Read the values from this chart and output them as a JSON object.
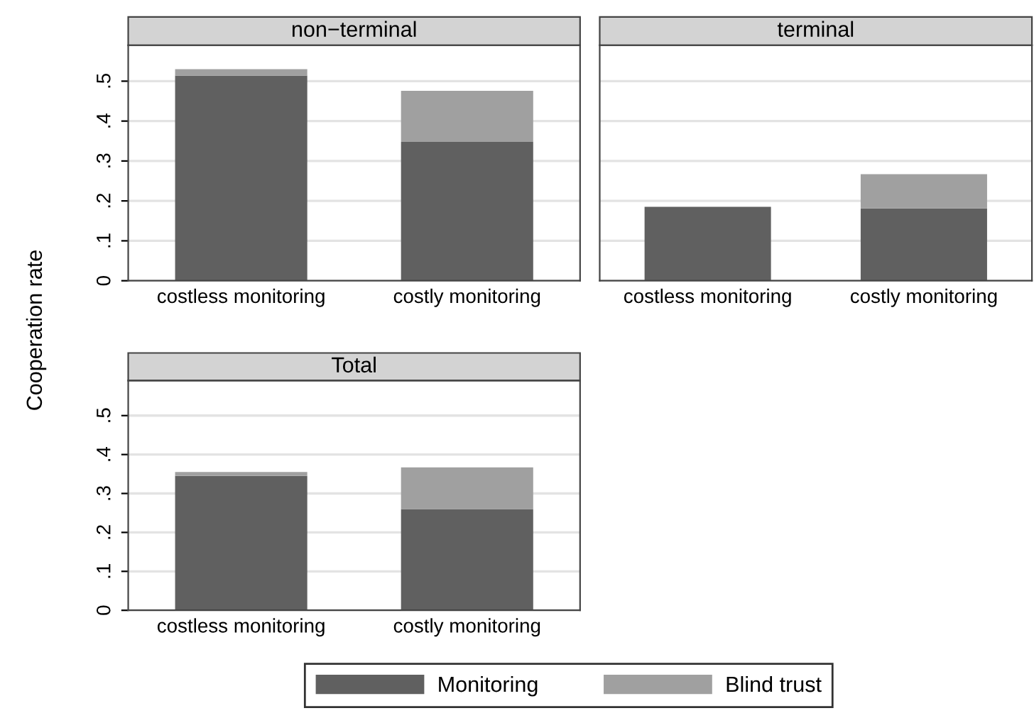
{
  "chart_data": [
    {
      "type": "bar",
      "stacked": true,
      "title": "non−terminal",
      "ylabel": "Cooperation rate",
      "categories": [
        "costless monitoring",
        "costly monitoring"
      ],
      "series": [
        {
          "color": "#606060",
          "values": [
            0.514,
            0.348
          ]
        },
        {
          "color": "#a0a0a0",
          "values": [
            0.016,
            0.128
          ]
        }
      ],
      "ylim": [
        0,
        0.59
      ],
      "yticks": [
        {
          "value": 0,
          "label": "0"
        },
        {
          "value": 0.1,
          "label": ".1"
        },
        {
          "value": 0.2,
          "label": ".2"
        },
        {
          "value": 0.3,
          "label": ".3"
        },
        {
          "value": 0.4,
          "label": ".4"
        },
        {
          "value": 0.5,
          "label": ".5"
        }
      ],
      "grid": "y"
    },
    {
      "type": "bar",
      "stacked": true,
      "title": "terminal",
      "categories": [
        "costless monitoring",
        "costly monitoring"
      ],
      "series": [
        {
          "color": "#606060",
          "values": [
            0.185,
            0.181
          ]
        },
        {
          "color": "#a0a0a0",
          "values": [
            0.0,
            0.086
          ]
        }
      ],
      "ylim": [
        0,
        0.59
      ],
      "yticks": [
        0,
        0.1,
        0.2,
        0.3,
        0.4,
        0.5
      ],
      "grid": "y",
      "tick_labels": "x"
    },
    {
      "type": "bar",
      "stacked": true,
      "title": "Total",
      "categories": [
        "costless monitoring",
        "costly monitoring"
      ],
      "series": [
        {
          "name": "Monitoring",
          "color": "#606060",
          "values": [
            0.345,
            0.26
          ]
        },
        {
          "name": "Blind trust",
          "color": "#a0a0a0",
          "values": [
            0.01,
            0.107
          ]
        }
      ],
      "ylim": [
        0,
        0.59
      ],
      "yticks": [
        {
          "value": 0,
          "label": "0"
        },
        {
          "value": 0.1,
          "label": ".1"
        },
        {
          "value": 0.2,
          "label": ".2"
        },
        {
          "value": 0.3,
          "label": ".3"
        },
        {
          "value": 0.4,
          "label": ".4"
        },
        {
          "value": 0.5,
          "label": ".5"
        }
      ],
      "grid": "y",
      "legend": "bottom"
    }
  ]
}
